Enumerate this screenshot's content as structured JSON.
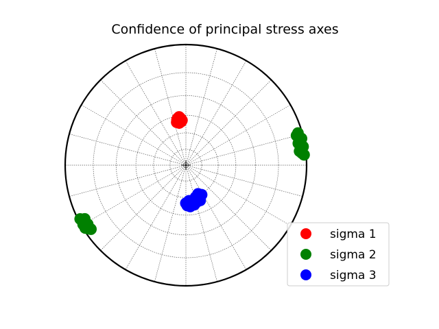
{
  "chart_data": {
    "type": "scatter",
    "projection": "polar stereonet (lower hemisphere, equal-angle)",
    "title": "Confidence of principal stress axes",
    "grid": true,
    "legend_position": "lower-right",
    "azimuth_grid_step_deg": 15,
    "dip_grid_step_deg": 15,
    "series": [
      {
        "name": "sigma 1",
        "color": "#ff0000",
        "points": [
          {
            "trend": 350,
            "plunge": 49
          },
          {
            "trend": 352,
            "plunge": 50
          },
          {
            "trend": 354,
            "plunge": 48
          },
          {
            "trend": 349,
            "plunge": 48
          },
          {
            "trend": 353,
            "plunge": 47
          },
          {
            "trend": 351,
            "plunge": 51
          },
          {
            "trend": 355,
            "plunge": 49
          },
          {
            "trend": 348,
            "plunge": 50
          },
          {
            "trend": 352,
            "plunge": 46
          },
          {
            "trend": 350,
            "plunge": 47
          },
          {
            "trend": 354,
            "plunge": 50
          },
          {
            "trend": 351,
            "plunge": 48
          }
        ]
      },
      {
        "name": "sigma 2",
        "color": "#008000",
        "points": [
          {
            "trend": 74,
            "plunge": 2
          },
          {
            "trend": 76,
            "plunge": 2
          },
          {
            "trend": 78,
            "plunge": 2
          },
          {
            "trend": 80,
            "plunge": 2
          },
          {
            "trend": 82,
            "plunge": 2
          },
          {
            "trend": 84,
            "plunge": 2
          },
          {
            "trend": 75,
            "plunge": 3
          },
          {
            "trend": 79,
            "plunge": 3
          },
          {
            "trend": 83,
            "plunge": 3
          },
          {
            "trend": 77,
            "plunge": 1
          },
          {
            "trend": 81,
            "plunge": 1
          },
          {
            "trend": 85,
            "plunge": 1
          },
          {
            "trend": 243,
            "plunge": 1
          },
          {
            "trend": 241,
            "plunge": 2
          },
          {
            "trend": 239,
            "plunge": 3
          },
          {
            "trend": 237,
            "plunge": 2
          },
          {
            "trend": 240,
            "plunge": 1
          },
          {
            "trend": 242,
            "plunge": 3
          },
          {
            "trend": 238,
            "plunge": 1
          },
          {
            "trend": 236,
            "plunge": 3
          }
        ]
      },
      {
        "name": "sigma 3",
        "color": "#0000ff",
        "points": [
          {
            "trend": 180,
            "plunge": 55
          },
          {
            "trend": 176,
            "plunge": 55
          },
          {
            "trend": 172,
            "plunge": 55
          },
          {
            "trend": 168,
            "plunge": 56
          },
          {
            "trend": 164,
            "plunge": 57
          },
          {
            "trend": 160,
            "plunge": 57
          },
          {
            "trend": 156,
            "plunge": 58
          },
          {
            "trend": 152,
            "plunge": 59
          },
          {
            "trend": 178,
            "plunge": 53
          },
          {
            "trend": 174,
            "plunge": 52
          },
          {
            "trend": 170,
            "plunge": 53
          },
          {
            "trend": 166,
            "plunge": 54
          },
          {
            "trend": 162,
            "plunge": 55
          },
          {
            "trend": 158,
            "plunge": 55
          },
          {
            "trend": 175,
            "plunge": 57
          },
          {
            "trend": 168,
            "plunge": 53
          },
          {
            "trend": 163,
            "plunge": 59
          },
          {
            "trend": 157,
            "plunge": 61
          }
        ]
      }
    ]
  }
}
